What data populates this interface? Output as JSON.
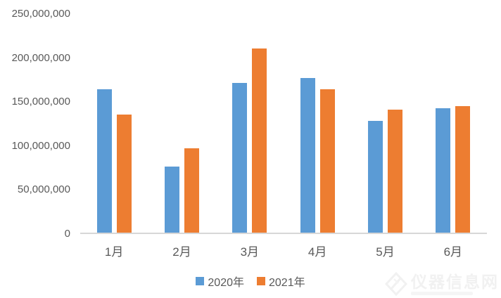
{
  "chart_data": {
    "type": "bar",
    "title": "",
    "xlabel": "",
    "ylabel": "",
    "categories": [
      "1月",
      "2月",
      "3月",
      "4月",
      "5月",
      "6月"
    ],
    "series": [
      {
        "name": "2020年",
        "color": "#5B9BD5",
        "values": [
          163000000,
          75000000,
          170000000,
          176000000,
          127000000,
          141000000
        ]
      },
      {
        "name": "2021年",
        "color": "#ED7D31",
        "values": [
          134000000,
          96000000,
          209000000,
          163000000,
          140000000,
          144000000
        ]
      }
    ],
    "ylim": [
      0,
      250000000
    ],
    "ytick_step": 50000000,
    "ytick_labels": [
      "0",
      "50,000,000",
      "100,000,000",
      "150,000,000",
      "200,000,000",
      "250,000,000"
    ],
    "grid": false,
    "legend_position": "bottom-center"
  },
  "colors": {
    "series_2020": "#5B9BD5",
    "series_2021": "#ED7D31",
    "axis_line": "#D7D7D7",
    "tick_text": "#595959",
    "background": "#FFFFFF",
    "watermark_text": "#F1F1F1"
  },
  "watermark": {
    "text": "仪器信息网",
    "logo": "instrument-site-logo-icon"
  }
}
